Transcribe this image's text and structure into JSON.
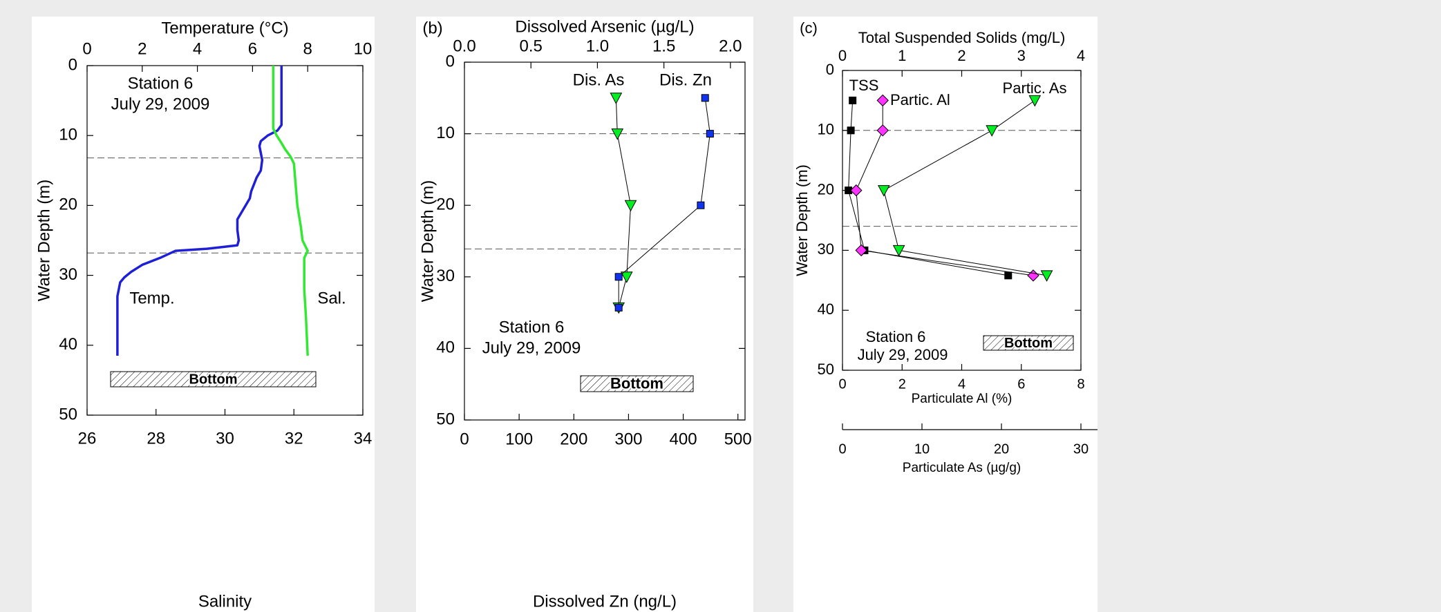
{
  "chart_data": [
    {
      "type": "line",
      "ylabel": "Water Depth (m)",
      "ylim": [
        0,
        50
      ],
      "yticks": [
        0,
        10,
        20,
        30,
        40,
        50
      ],
      "y_inverted": true,
      "axes": [
        {
          "label": "Temperature (°C)",
          "lim": [
            0,
            10
          ],
          "ticks": [
            0,
            2,
            4,
            6,
            8,
            10
          ]
        },
        {
          "label": "Salinity",
          "lim": [
            26,
            34
          ],
          "ticks": [
            26,
            28,
            30,
            32,
            34
          ]
        }
      ],
      "series": [
        {
          "name": "Temp.",
          "color": "#1f1fd6",
          "axis": 0,
          "marker": "none",
          "depth": [
            0,
            8.5,
            9.3,
            10,
            10.8,
            11.5,
            12.5,
            13.5,
            15,
            16,
            17,
            18,
            19,
            20,
            21,
            22,
            23.5,
            25,
            25.7,
            26,
            26.2,
            26.5,
            27.5,
            28.5,
            29.5,
            30.3,
            31,
            33,
            41.5
          ],
          "values": [
            7.05,
            7.05,
            6.9,
            6.55,
            6.3,
            6.25,
            6.3,
            6.35,
            6.3,
            6.15,
            6.05,
            5.95,
            5.9,
            5.75,
            5.6,
            5.45,
            5.45,
            5.5,
            5.45,
            4.8,
            4.35,
            3.2,
            2.65,
            2.0,
            1.6,
            1.35,
            1.2,
            1.1,
            1.1
          ]
        },
        {
          "name": "Sal.",
          "color": "#33e833",
          "axis": 1,
          "marker": "none",
          "depth": [
            0,
            9,
            10,
            11,
            12,
            13,
            14,
            17,
            20,
            23,
            25,
            26.5,
            27.5,
            29,
            32,
            36,
            41.5
          ],
          "values": [
            31.4,
            31.4,
            31.5,
            31.63,
            31.75,
            31.9,
            32.0,
            32.05,
            32.1,
            32.2,
            32.25,
            32.4,
            32.3,
            32.3,
            32.3,
            32.35,
            32.4
          ]
        }
      ],
      "hlines": [
        13.2,
        26.8
      ],
      "annotations": [
        "Station 6",
        "July 29, 2009"
      ],
      "bottom_label": "Bottom"
    },
    {
      "type": "line",
      "panel_label": "(b)",
      "ylabel": "Water Depth (m)",
      "ylim": [
        0,
        50
      ],
      "yticks": [
        0,
        10,
        20,
        30,
        40,
        50
      ],
      "y_inverted": true,
      "axes": [
        {
          "label": "Dissolved Arsenic (µg/L)",
          "lim": [
            0,
            2.11
          ],
          "ticks": [
            {
              "value": 0,
              "label": "0.0"
            },
            0.5,
            {
              "value": 1,
              "label": "1.0"
            },
            1.5,
            {
              "value": 2,
              "label": "2.0"
            }
          ]
        },
        {
          "label": "Dissolved Zn (ng/L)",
          "lim": [
            0,
            513
          ],
          "ticks": [
            0,
            100,
            200,
            300,
            400,
            500
          ]
        }
      ],
      "series": [
        {
          "name": "Dis. As",
          "color": "#00ee22",
          "axis": 0,
          "marker": "triangle",
          "depth": [
            5,
            10,
            20,
            30,
            34.3
          ],
          "values": [
            1.14,
            1.15,
            1.25,
            1.22,
            1.16
          ]
        },
        {
          "name": "Dis. Zn",
          "color": "#1133ee",
          "axis": 1,
          "marker": "square",
          "depth": [
            5,
            10,
            20,
            30,
            34.3
          ],
          "values": [
            440,
            449,
            432,
            282,
            282
          ]
        }
      ],
      "hlines": [
        10,
        26.1
      ],
      "annotations": [
        "Station 6",
        "July 29, 2009"
      ],
      "bottom_label": "Bottom"
    },
    {
      "type": "line",
      "panel_label": "(c)",
      "ylabel": "Water Depth (m)",
      "ylim": [
        0,
        50
      ],
      "yticks": [
        0,
        10,
        20,
        30,
        40,
        50
      ],
      "y_inverted": true,
      "axes": [
        {
          "label": "Total Suspended Solids (mg/L)",
          "lim": [
            0,
            4
          ],
          "ticks": [
            0,
            1,
            2,
            3,
            4
          ]
        },
        {
          "label": "Particulate Al (%)",
          "lim": [
            0,
            8
          ],
          "ticks": [
            0,
            2,
            4,
            6,
            8
          ]
        },
        {
          "label": "Particulate As (µg/g)",
          "lim": [
            0,
            30
          ],
          "ticks": [
            0,
            10,
            20,
            30
          ]
        }
      ],
      "series": [
        {
          "name": "TSS",
          "color": "#000000",
          "axis": 0,
          "marker": "square",
          "depth": [
            5,
            10,
            20,
            30,
            34.2
          ],
          "values": [
            0.17,
            0.14,
            0.1,
            0.37,
            2.78
          ]
        },
        {
          "name": "Partic. Al",
          "color": "#ff33ff",
          "axis": 1,
          "marker": "diamond",
          "depth": [
            5,
            10,
            20,
            30,
            34.2
          ],
          "values": [
            1.35,
            1.35,
            0.46,
            0.63,
            6.4
          ]
        },
        {
          "name": "Partic. As",
          "color": "#00ee22",
          "axis": 2,
          "marker": "triangle",
          "depth": [
            5,
            10,
            20,
            30,
            34.2
          ],
          "values": [
            24.2,
            18.8,
            5.2,
            7.1,
            25.7
          ]
        }
      ],
      "hlines": [
        10,
        26.0
      ],
      "annotations": [
        "Station 6",
        "July 29, 2009"
      ],
      "bottom_label": "Bottom"
    }
  ]
}
